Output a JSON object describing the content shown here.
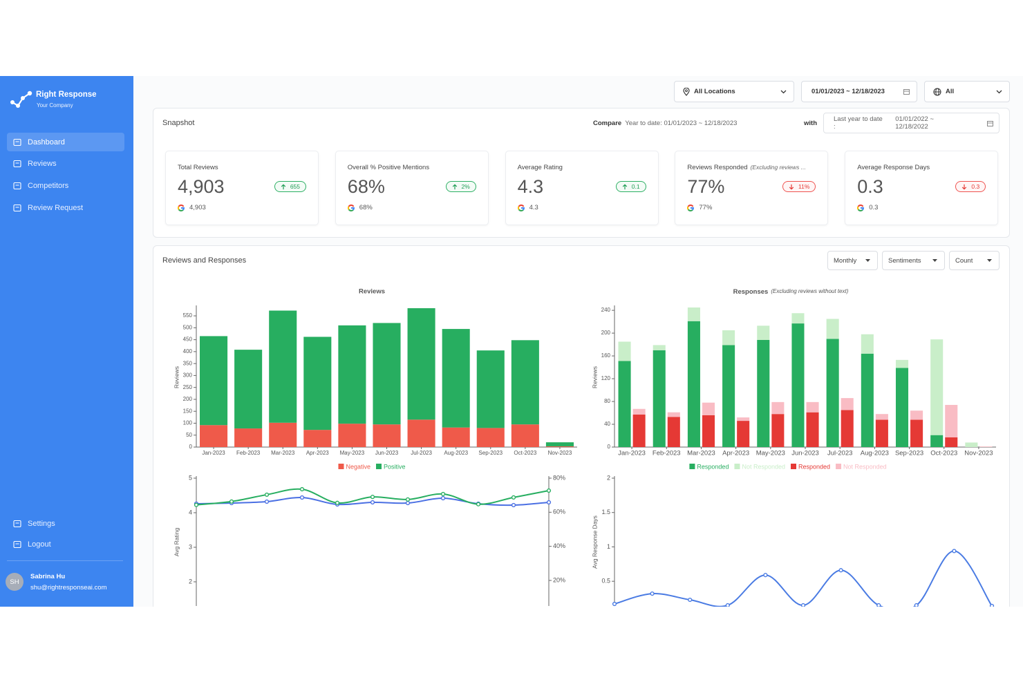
{
  "sidebar": {
    "brand": "Right Response",
    "company": "Your Company",
    "nav": [
      "Dashboard",
      "Reviews",
      "Competitors",
      "Review Request"
    ],
    "active": 0,
    "bottom_nav": [
      "Settings",
      "Logout"
    ],
    "user": {
      "initials": "SH",
      "name": "Sabrina Hu",
      "email": "shu@rightresponseai.com"
    }
  },
  "filters": [
    "All Locations",
    "01/01/2023 ~ 12/18/2023",
    "All"
  ],
  "snapshot": {
    "title": "Snapshot",
    "compare_label": "Compare",
    "compare_value": "Year to date: 01/01/2023 ~ 12/18/2023",
    "with_label": "with",
    "with_prefix": "Last year to date :",
    "with_range": "01/01/2022 ~ 12/18/2022",
    "cards": [
      {
        "label": "Total Reviews",
        "value": "4,903",
        "change": "655",
        "direction": "up",
        "google": "4,903"
      },
      {
        "label": "Overall % Positive Mentions",
        "value": "68%",
        "change": "2%",
        "direction": "up",
        "google": "68%"
      },
      {
        "label": "Average Rating",
        "value": "4.3",
        "change": "0.1",
        "direction": "up",
        "google": "4.3"
      },
      {
        "label": "Reviews Responded",
        "note": "(Excluding reviews ...",
        "value": "77%",
        "change": "11%",
        "direction": "down",
        "google": "77%"
      },
      {
        "label": "Average Response Days",
        "value": "0.3",
        "change": "0.3",
        "direction": "down",
        "google": "0.3"
      }
    ]
  },
  "section": {
    "title": "Reviews and Responses",
    "dropdowns": [
      "Monthly",
      "Sentiments",
      "Count"
    ]
  },
  "chart_data": [
    {
      "type": "bar",
      "title": "Reviews",
      "y_label": "Reviews",
      "categories": [
        "Jan-2023",
        "Feb-2023",
        "Mar-2023",
        "Apr-2023",
        "May-2023",
        "Jun-2023",
        "Jul-2023",
        "Aug-2023",
        "Sep-2023",
        "Oct-2023",
        "Nov-2023"
      ],
      "series": [
        {
          "name": "Negative",
          "color": "#ef5a4a",
          "values": [
            92,
            78,
            102,
            72,
            98,
            95,
            115,
            82,
            80,
            95,
            3
          ]
        },
        {
          "name": "Positive",
          "color": "#27ae60",
          "values": [
            373,
            330,
            470,
            390,
            412,
            425,
            467,
            413,
            325,
            353,
            17
          ]
        }
      ],
      "ylim": [
        0,
        585
      ],
      "yticks": [
        0,
        50,
        100,
        150,
        200,
        250,
        300,
        350,
        400,
        450,
        500,
        550
      ]
    },
    {
      "type": "bar",
      "title": "Responses",
      "subtitle": "(Excluding reviews without text)",
      "y_label": "Reviews",
      "categories": [
        "Jan-2023",
        "Feb-2023",
        "Mar-2023",
        "Apr-2023",
        "May-2023",
        "Jun-2023",
        "Jul-2023",
        "Aug-2023",
        "Sep-2023",
        "Oct-2023",
        "Nov-2023"
      ],
      "series": [
        {
          "name": "Responded",
          "color": "#27ae60",
          "stack": "positive",
          "values": [
            151,
            170,
            221,
            179,
            188,
            217,
            190,
            164,
            139,
            21,
            0
          ]
        },
        {
          "name": "Not Responded",
          "color": "#c9eec9",
          "stack": "positive",
          "values": [
            34,
            9,
            24,
            26,
            25,
            18,
            35,
            34,
            14,
            168,
            8
          ]
        },
        {
          "name": "Responded",
          "color": "#e53935",
          "stack": "negative",
          "values": [
            57,
            53,
            56,
            46,
            58,
            61,
            65,
            48,
            48,
            17,
            0
          ]
        },
        {
          "name": "Not Responded",
          "color": "#f9bcc4",
          "stack": "negative",
          "values": [
            10,
            8,
            22,
            6,
            21,
            18,
            21,
            10,
            16,
            57,
            1
          ]
        }
      ],
      "ylim": [
        0,
        245
      ],
      "yticks": [
        0,
        40,
        80,
        120,
        160,
        200,
        240
      ]
    },
    {
      "type": "line",
      "smooth": true,
      "y_label": "Avg Rating",
      "series": [
        {
          "color": "#4a6fe3",
          "values": [
            4.26,
            4.28,
            4.32,
            4.44,
            4.24,
            4.3,
            4.28,
            4.42,
            4.26,
            4.22,
            4.3
          ]
        },
        {
          "color": "#27ae60",
          "axis": "y2",
          "values": [
            64.3,
            66.3,
            70.3,
            73.5,
            65.5,
            69,
            67.5,
            70.7,
            64.7,
            68.7,
            72.7
          ]
        }
      ],
      "ylim": [
        1.3,
        5
      ],
      "yticks": [
        2,
        3,
        4,
        5
      ],
      "y2lim": [
        5,
        80
      ],
      "y2ticks": [
        {
          "value": 20,
          "label": "20%"
        },
        {
          "value": 40,
          "label": "40%"
        },
        {
          "value": 60,
          "label": "60%"
        },
        {
          "value": 80,
          "label": "80%"
        }
      ]
    },
    {
      "type": "line",
      "smooth": true,
      "y_label": "Avg Response Days",
      "series": [
        {
          "color": "#4a7be3",
          "values": [
            0.17,
            0.32,
            0.23,
            0.15,
            0.59,
            0.15,
            0.66,
            0.15,
            0.15,
            0.94,
            0.14
          ]
        }
      ],
      "ylim": [
        0.14,
        2
      ],
      "yticks": [
        0.5,
        1,
        1.5,
        2
      ]
    }
  ]
}
